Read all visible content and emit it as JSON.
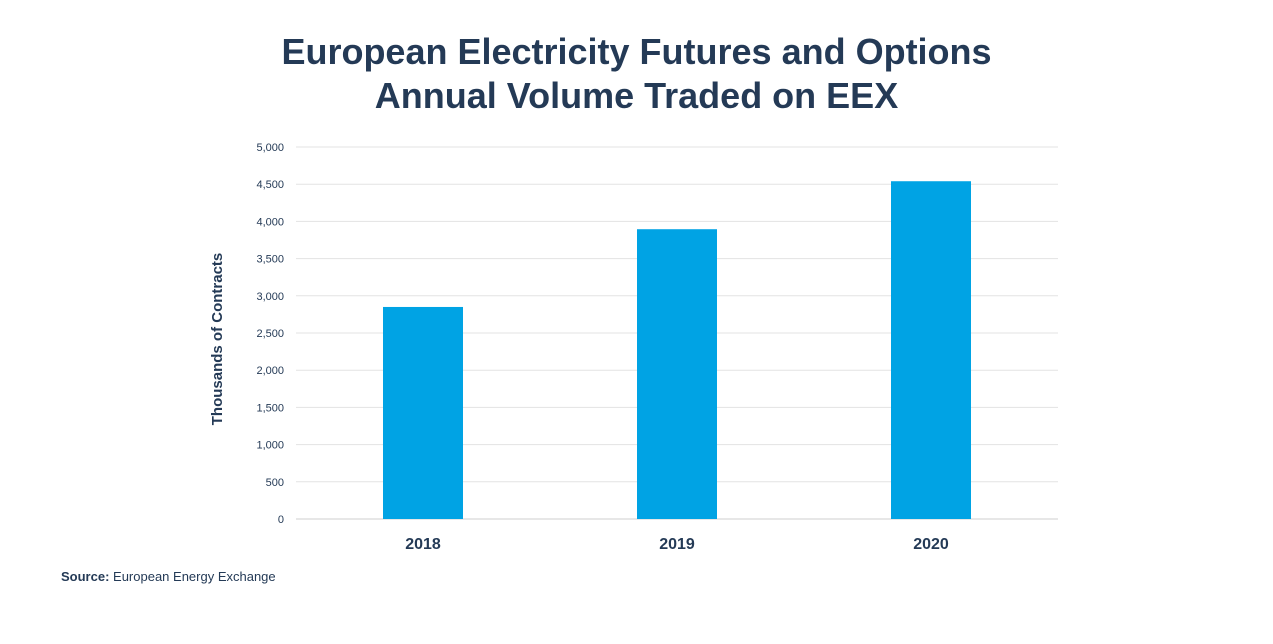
{
  "colors": {
    "bar": "#00a3e4",
    "text": "#243a56",
    "grid": "#e3e3e3"
  },
  "chart_data": {
    "type": "bar",
    "title_lines": [
      "European Electricity Futures and Options",
      "Annual Volume Traded on EEX"
    ],
    "xlabel": "",
    "ylabel": "Thousands of Contracts",
    "categories": [
      "2018",
      "2019",
      "2020"
    ],
    "values": [
      2850,
      3895,
      4540
    ],
    "ylim": [
      0,
      5000
    ],
    "yticks": [
      0,
      500,
      1000,
      1500,
      2000,
      2500,
      3000,
      3500,
      4000,
      4500,
      5000
    ],
    "ytick_labels": [
      "0",
      "500",
      "1,000",
      "1,500",
      "2,000",
      "2,500",
      "3,000",
      "3,500",
      "4,000",
      "4,500",
      "5,000"
    ],
    "grid": true,
    "legend": "none"
  },
  "source": {
    "label": "Source:",
    "text": "European Energy Exchange"
  }
}
